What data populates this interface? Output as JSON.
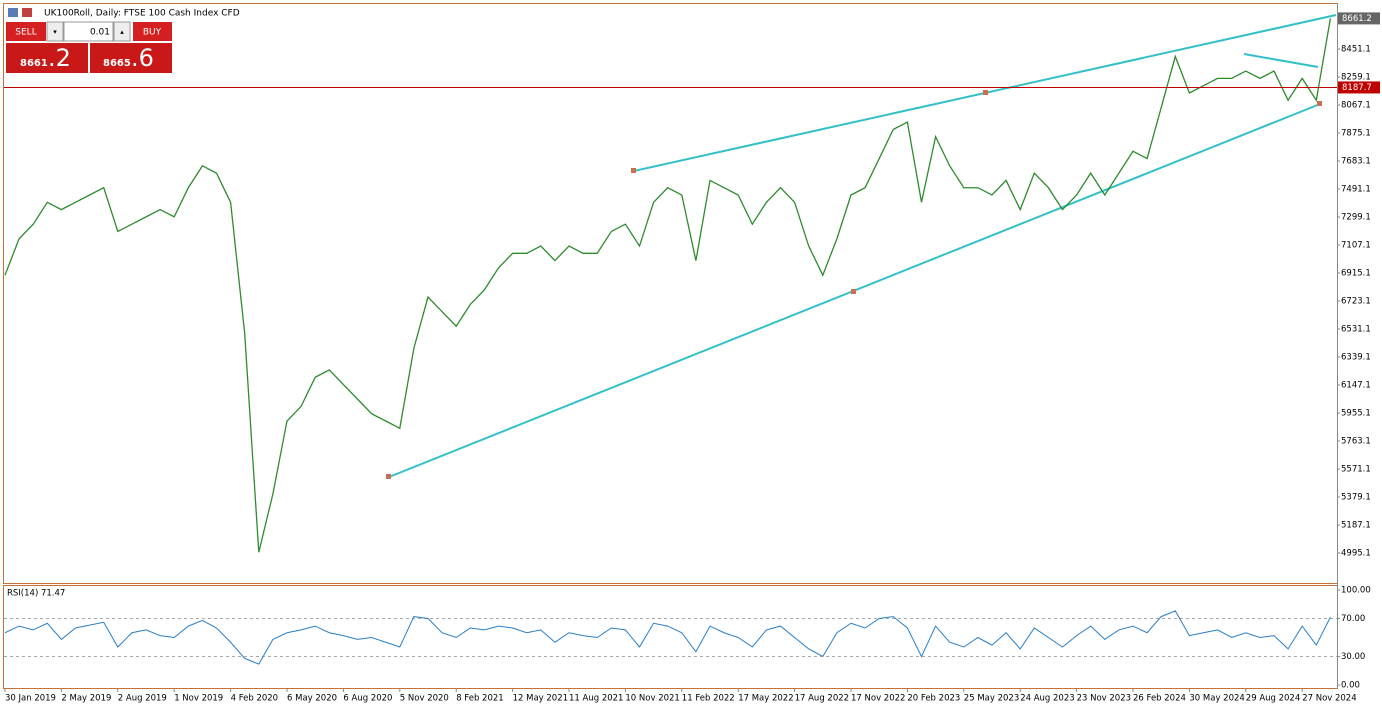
{
  "chart_data": [
    {
      "type": "line",
      "title": "UK100Roll, Daily:  FTSE 100 Cash Index CFD",
      "color": "#2e8b2e",
      "categories": [
        "30 Jan 2019",
        null,
        null,
        null,
        "2 May 2019",
        null,
        null,
        null,
        "2 Aug 2019",
        null,
        null,
        null,
        "1 Nov 2019",
        null,
        null,
        null,
        "4 Feb 2020",
        null,
        null,
        null,
        "6 May 2020",
        null,
        null,
        null,
        "6 Aug 2020",
        null,
        null,
        null,
        "5 Nov 2020",
        null,
        null,
        null,
        "8 Feb 2021",
        null,
        null,
        null,
        "12 May 2021",
        null,
        null,
        null,
        "11 Aug 2021",
        null,
        null,
        null,
        "10 Nov 2021",
        null,
        null,
        null,
        "11 Feb 2022",
        null,
        null,
        null,
        "17 May 2022",
        null,
        null,
        null,
        "17 Aug 2022",
        null,
        null,
        null,
        "17 Nov 2022",
        null,
        null,
        null,
        "20 Feb 2023",
        null,
        null,
        null,
        "25 May 2023",
        null,
        null,
        null,
        "24 Aug 2023",
        null,
        null,
        null,
        "23 Nov 2023",
        null,
        null,
        null,
        "26 Feb 2024",
        null,
        null,
        null,
        "30 May 2024",
        null,
        null,
        null,
        "29 Aug 2024",
        null,
        null,
        null,
        "27 Nov 2024",
        null,
        null
      ],
      "values": [
        6900,
        7150,
        7250,
        7400,
        7350,
        7400,
        7450,
        7500,
        7200,
        7250,
        7300,
        7350,
        7300,
        7500,
        7650,
        7600,
        7400,
        6500,
        5000,
        5400,
        5900,
        6000,
        6200,
        6250,
        6150,
        6050,
        5950,
        5900,
        5850,
        6400,
        6750,
        6650,
        6550,
        6700,
        6800,
        6950,
        7050,
        7050,
        7100,
        7000,
        7100,
        7050,
        7050,
        7200,
        7250,
        7100,
        7400,
        7500,
        7450,
        7000,
        7550,
        7500,
        7450,
        7250,
        7400,
        7500,
        7400,
        7100,
        6900,
        7150,
        7450,
        7500,
        7700,
        7900,
        7950,
        7400,
        7850,
        7650,
        7500,
        7500,
        7450,
        7550,
        7350,
        7600,
        7500,
        7350,
        7450,
        7600,
        7450,
        7600,
        7750,
        7700,
        8050,
        8400,
        8150,
        8200,
        8250,
        8250,
        8300,
        8250,
        8300,
        8100,
        8250,
        8100,
        8661.2
      ],
      "ylim": [
        4789,
        8760
      ],
      "yticks": [
        8451.1,
        8259.1,
        8067.1,
        7875.1,
        7683.1,
        7491.1,
        7299.1,
        7107.1,
        6915.1,
        6723.1,
        6531.1,
        6339.1,
        6147.1,
        5955.1,
        5763.1,
        5571.1,
        5379.1,
        5187.1,
        4995.1
      ],
      "last_price": 8661.2,
      "price_line": 8187.7,
      "price_line_color": "#c00000"
    },
    {
      "type": "line",
      "title": "RSI(14) 71.47",
      "color": "#2a7fc4",
      "values": [
        55,
        62,
        58,
        65,
        48,
        60,
        63,
        66,
        40,
        55,
        58,
        52,
        50,
        62,
        68,
        60,
        45,
        28,
        22,
        48,
        55,
        58,
        62,
        55,
        52,
        48,
        50,
        45,
        40,
        72,
        70,
        55,
        50,
        60,
        58,
        62,
        60,
        55,
        58,
        45,
        55,
        52,
        50,
        60,
        58,
        40,
        65,
        62,
        55,
        35,
        62,
        55,
        50,
        40,
        58,
        62,
        50,
        38,
        30,
        55,
        65,
        60,
        70,
        72,
        60,
        30,
        62,
        45,
        40,
        50,
        42,
        55,
        38,
        60,
        50,
        40,
        52,
        62,
        48,
        58,
        62,
        55,
        72,
        78,
        52,
        55,
        58,
        50,
        55,
        50,
        52,
        38,
        62,
        42,
        71.47
      ],
      "ylim": [
        0,
        100
      ],
      "yticks": [
        {
          "value": 100,
          "label": "100.00"
        },
        {
          "value": 70,
          "label": "70.00"
        },
        {
          "value": 30,
          "label": "30.00"
        },
        {
          "value": 0,
          "label": "0.00"
        }
      ],
      "levels": [
        70,
        30
      ]
    }
  ],
  "trade_panel": {
    "sell": "SELL",
    "buy": "BUY",
    "volume": "0.01",
    "sell_price": {
      "integer": "8661",
      "fraction": ".2"
    },
    "buy_price": {
      "integer": "8665",
      "fraction": ".6"
    }
  }
}
